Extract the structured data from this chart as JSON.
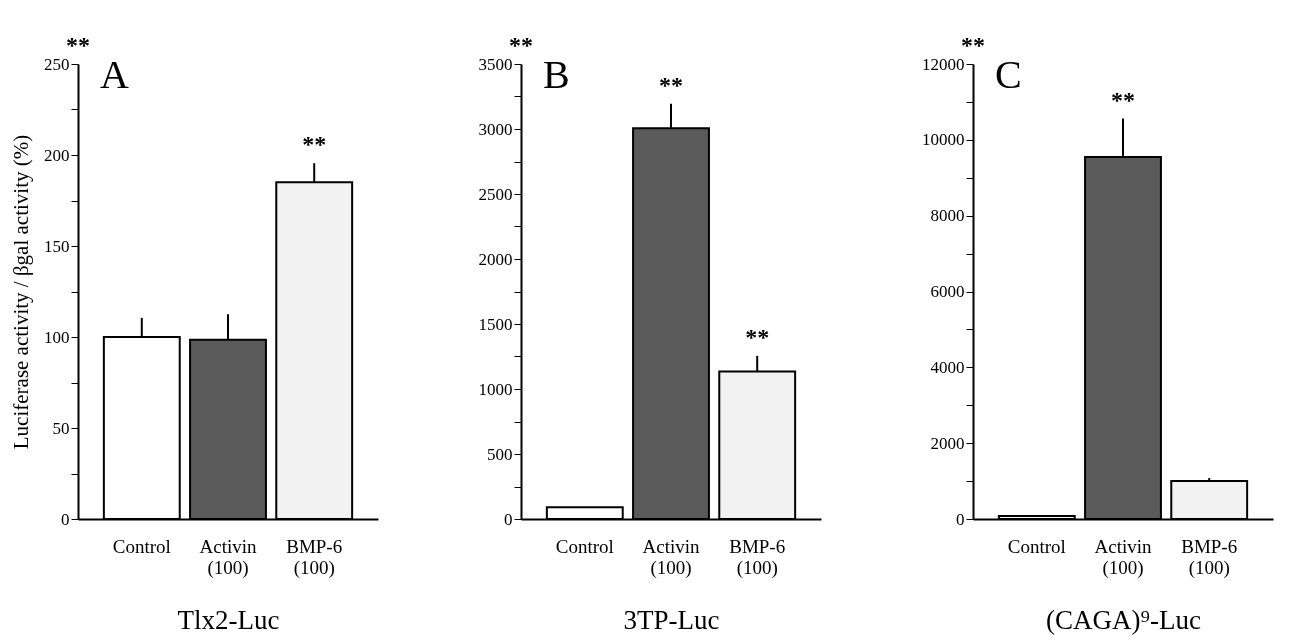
{
  "chart_data": [
    {
      "type": "bar",
      "title": "A",
      "xlabel": "Tlx2-Luc",
      "ylabel": "Luciferase activity / βgal activity (%)",
      "categories": [
        "Control",
        "Activin\n(100)",
        "BMP-6\n(100)"
      ],
      "values": [
        100,
        98.5,
        185
      ],
      "errors": [
        10.5,
        14,
        10.5
      ],
      "colors": [
        "#ffffff",
        "#5a5a5a",
        "#f2f2f2"
      ],
      "ylim": [
        0,
        250
      ],
      "yticks": [
        0,
        {
          "value": 25,
          "label": null
        },
        50,
        {
          "value": 75,
          "label": null
        },
        100,
        {
          "value": 125,
          "label": null
        },
        150,
        {
          "value": 175,
          "label": null
        },
        200,
        {
          "value": 225,
          "label": null
        },
        250
      ],
      "annotations": [
        {
          "text": "**",
          "x": "BMP-6\n(100)",
          "y": 185
        },
        "**"
      ]
    },
    {
      "type": "bar",
      "title": "B",
      "xlabel": "3TP-Luc",
      "categories": [
        "Control",
        "Activin\n(100)",
        "BMP-6\n(100)"
      ],
      "values": [
        90,
        3005,
        1135
      ],
      "errors": [
        null,
        190,
        120
      ],
      "colors": [
        "#ffffff",
        "#5a5a5a",
        "#f2f2f2"
      ],
      "ylim": [
        0,
        3500
      ],
      "yticks": [
        0,
        {
          "value": 250,
          "label": null
        },
        500,
        {
          "value": 750,
          "label": null
        },
        1000,
        {
          "value": 1250,
          "label": null
        },
        1500,
        {
          "value": 1750,
          "label": null
        },
        2000,
        {
          "value": 2250,
          "label": null
        },
        2500,
        {
          "value": 2750,
          "label": null
        },
        3000,
        {
          "value": 3250,
          "label": null
        },
        3500
      ],
      "annotations": [
        {
          "text": "**",
          "x": "Activin\n(100)",
          "y": 3005
        },
        {
          "text": "**",
          "x": "BMP-6\n(100)",
          "y": 1135
        },
        "**"
      ]
    },
    {
      "type": "bar",
      "title": "C",
      "xlabel": "(CAGA)⁹-Luc",
      "categories": [
        "Control",
        "Activin\n(100)",
        "BMP-6\n(100)"
      ],
      "values": [
        80,
        9550,
        1000
      ],
      "errors": [
        null,
        1010,
        80
      ],
      "colors": [
        "#ffffff",
        "#5a5a5a",
        "#f2f2f2"
      ],
      "ylim": [
        0,
        12000
      ],
      "yticks": [
        0,
        {
          "value": 1000,
          "label": null
        },
        2000,
        {
          "value": 3000,
          "label": null
        },
        4000,
        {
          "value": 5000,
          "label": null
        },
        6000,
        {
          "value": 7000,
          "label": null
        },
        8000,
        {
          "value": 9000,
          "label": null
        },
        10000,
        {
          "value": 11000,
          "label": null
        },
        12000
      ],
      "annotations": [
        {
          "text": "**",
          "x": "Activin\n(100)",
          "y": 9550
        },
        "**"
      ]
    }
  ]
}
